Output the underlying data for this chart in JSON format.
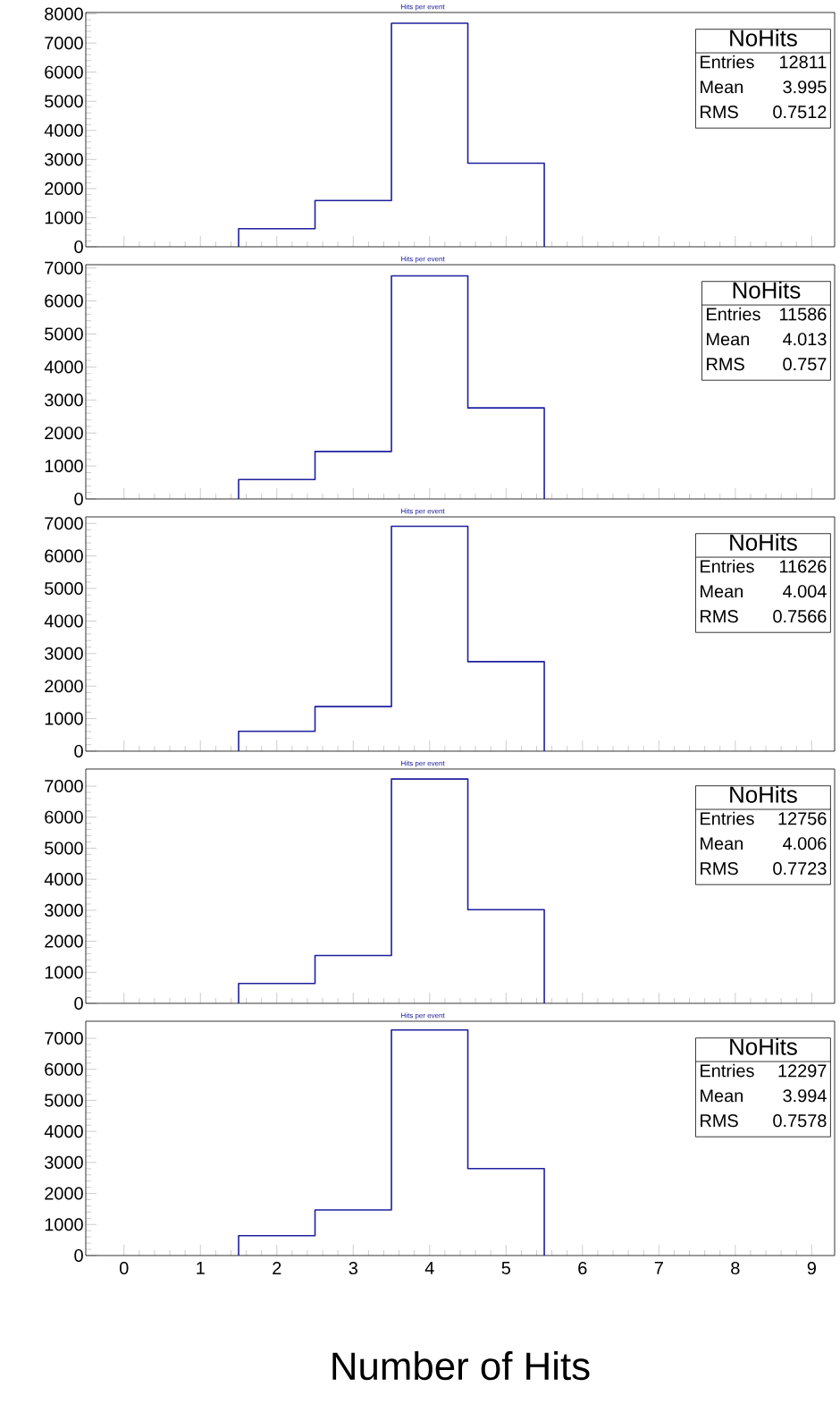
{
  "chart_data": [
    {
      "type": "histogram",
      "title": "Hits per event",
      "color": "#1f1fa0",
      "bins": [
        1.5,
        2.5,
        3.5,
        4.5,
        5.5
      ],
      "values": [
        620,
        1590,
        7680,
        2870
      ],
      "xlim": [
        -0.5,
        9.3
      ],
      "ylim": [
        0,
        8050
      ],
      "xticks": [
        0,
        1,
        2,
        3,
        4,
        5,
        6,
        7,
        8,
        9
      ],
      "yticks": [
        0,
        1000,
        2000,
        3000,
        4000,
        5000,
        6000,
        7000,
        8000
      ],
      "tick_labels": "y",
      "annotations": [
        "NoHits",
        "Entries",
        "12811",
        "Mean",
        "3.995",
        "RMS",
        "0.7512"
      ]
    },
    {
      "type": "histogram",
      "title": "Hits per event",
      "color": "#1f1fa0",
      "bins": [
        1.5,
        2.5,
        3.5,
        4.5,
        5.5
      ],
      "values": [
        590,
        1440,
        6760,
        2760
      ],
      "xlim": [
        -0.5,
        9.3
      ],
      "ylim": [
        0,
        7100
      ],
      "xticks": [
        0,
        1,
        2,
        3,
        4,
        5,
        6,
        7,
        8,
        9
      ],
      "yticks": [
        0,
        1000,
        2000,
        3000,
        4000,
        5000,
        6000,
        7000
      ],
      "tick_labels": "y",
      "annotations": [
        "NoHits",
        "Entries",
        "11586",
        "Mean",
        "4.013",
        "RMS",
        "0.757"
      ]
    },
    {
      "type": "histogram",
      "title": "Hits per event",
      "color": "#1f1fa0",
      "bins": [
        1.5,
        2.5,
        3.5,
        4.5,
        5.5
      ],
      "values": [
        610,
        1370,
        6910,
        2750
      ],
      "xlim": [
        -0.5,
        9.3
      ],
      "ylim": [
        0,
        7200
      ],
      "xticks": [
        0,
        1,
        2,
        3,
        4,
        5,
        6,
        7,
        8,
        9
      ],
      "yticks": [
        0,
        1000,
        2000,
        3000,
        4000,
        5000,
        6000,
        7000
      ],
      "tick_labels": "y",
      "annotations": [
        "NoHits",
        "Entries",
        "11626",
        "Mean",
        "4.004",
        "RMS",
        "0.7566"
      ]
    },
    {
      "type": "histogram",
      "title": "Hits per event",
      "color": "#1f1fa0",
      "bins": [
        1.5,
        2.5,
        3.5,
        4.5,
        5.5
      ],
      "values": [
        640,
        1540,
        7230,
        3020
      ],
      "xlim": [
        -0.5,
        9.3
      ],
      "ylim": [
        0,
        7550
      ],
      "xticks": [
        0,
        1,
        2,
        3,
        4,
        5,
        6,
        7,
        8,
        9
      ],
      "yticks": [
        0,
        1000,
        2000,
        3000,
        4000,
        5000,
        6000,
        7000
      ],
      "tick_labels": "y",
      "annotations": [
        "NoHits",
        "Entries",
        "12756",
        "Mean",
        "4.006",
        "RMS",
        "0.7723"
      ]
    },
    {
      "type": "histogram",
      "title": "Hits per event",
      "xlabel": "Number of Hits",
      "color": "#1f1fa0",
      "bins": [
        1.5,
        2.5,
        3.5,
        4.5,
        5.5
      ],
      "values": [
        640,
        1470,
        7270,
        2800
      ],
      "xlim": [
        -0.5,
        9.3
      ],
      "ylim": [
        0,
        7550
      ],
      "xticks": [
        0,
        1,
        2,
        3,
        4,
        5,
        6,
        7,
        8,
        9
      ],
      "yticks": [
        0,
        1000,
        2000,
        3000,
        4000,
        5000,
        6000,
        7000
      ],
      "annotations": [
        "NoHits",
        "Entries",
        "12297",
        "Mean",
        "3.994",
        "RMS",
        "0.7578"
      ]
    }
  ]
}
